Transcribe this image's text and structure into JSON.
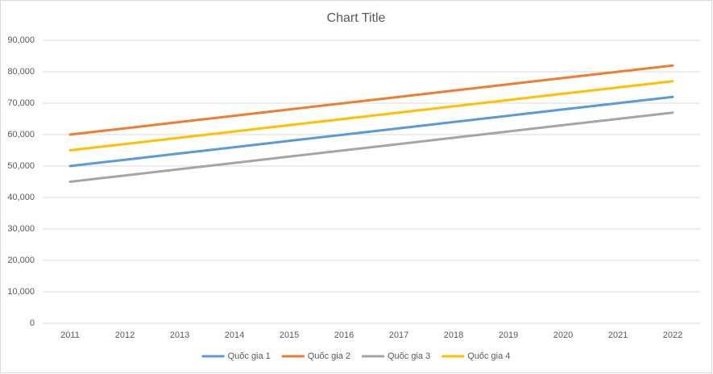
{
  "chart_data": {
    "type": "line",
    "title": "Chart Title",
    "categories": [
      "2011",
      "2012",
      "2013",
      "2014",
      "2015",
      "2016",
      "2017",
      "2018",
      "2019",
      "2020",
      "2021",
      "2022"
    ],
    "series": [
      {
        "name": "Quốc gia 1",
        "color": "#5b9bd5",
        "values": [
          50000,
          52000,
          54000,
          56000,
          58000,
          60000,
          62000,
          64000,
          66000,
          68000,
          70000,
          72000
        ]
      },
      {
        "name": "Quốc gia 2",
        "color": "#ed7d31",
        "values": [
          60000,
          62000,
          64000,
          66000,
          68000,
          70000,
          72000,
          74000,
          76000,
          78000,
          80000,
          82000
        ]
      },
      {
        "name": "Quốc gia 3",
        "color": "#a5a5a5",
        "values": [
          45000,
          47000,
          49000,
          51000,
          53000,
          55000,
          57000,
          59000,
          61000,
          63000,
          65000,
          67000
        ]
      },
      {
        "name": "Quốc gia 4",
        "color": "#ffc000",
        "values": [
          55000,
          57000,
          59000,
          61000,
          63000,
          65000,
          67000,
          69000,
          71000,
          73000,
          75000,
          77000
        ]
      }
    ],
    "ylim": [
      0,
      90000
    ],
    "yticks": [
      0,
      {
        "value": 10000,
        "label": "10,000"
      },
      {
        "value": 20000,
        "label": "20,000"
      },
      {
        "value": 30000,
        "label": "30,000"
      },
      {
        "value": 40000,
        "label": "40,000"
      },
      {
        "value": 50000,
        "label": "50,000"
      },
      {
        "value": 60000,
        "label": "60,000"
      },
      {
        "value": 70000,
        "label": "70,000"
      },
      {
        "value": 80000,
        "label": "80,000"
      },
      {
        "value": 90000,
        "label": "90,000"
      }
    ],
    "grid": true,
    "legend": "bottom"
  }
}
